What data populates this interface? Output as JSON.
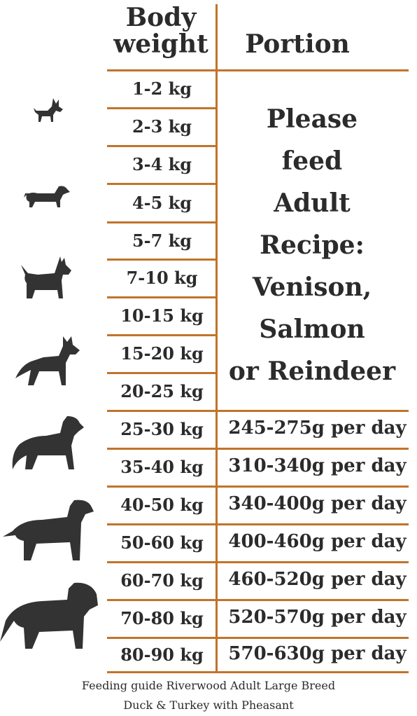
{
  "header": {
    "body_weight": "Body\nweight",
    "portion": "Portion"
  },
  "rows": [
    {
      "weight": "1-2 kg"
    },
    {
      "weight": "2-3 kg"
    },
    {
      "weight": "3-4 kg"
    },
    {
      "weight": "4-5 kg"
    },
    {
      "weight": "5-7 kg"
    },
    {
      "weight": "7-10 kg"
    },
    {
      "weight": "10-15 kg"
    },
    {
      "weight": "15-20 kg"
    },
    {
      "weight": "20-25 kg"
    },
    {
      "weight": "25-30 kg",
      "portion": "245-275g per day"
    },
    {
      "weight": "35-40 kg",
      "portion": "310-340g per day"
    },
    {
      "weight": "40-50 kg",
      "portion": "340-400g per day"
    },
    {
      "weight": "50-60 kg",
      "portion": "400-460g per day"
    },
    {
      "weight": "60-70 kg",
      "portion": "460-520g per day"
    },
    {
      "weight": "70-80 kg",
      "portion": "520-570g per day"
    },
    {
      "weight": "80-90 kg",
      "portion": "570-630g per day"
    }
  ],
  "note_lines": [
    "Please",
    "feed",
    "Adult",
    "Recipe:",
    "Venison,",
    "Salmon",
    "or Reindeer"
  ],
  "footer": {
    "line1": "Feeding guide Riverwood Adult Large Breed",
    "line2": "Duck & Turkey with Pheasant"
  },
  "colors": {
    "accent": "#c0742b",
    "text": "#2b2b2b"
  },
  "icons": [
    "chihuahua-icon",
    "dachshund-icon",
    "scottie-icon",
    "husky-icon",
    "setter-icon",
    "labrador-icon",
    "st-bernard-icon"
  ]
}
